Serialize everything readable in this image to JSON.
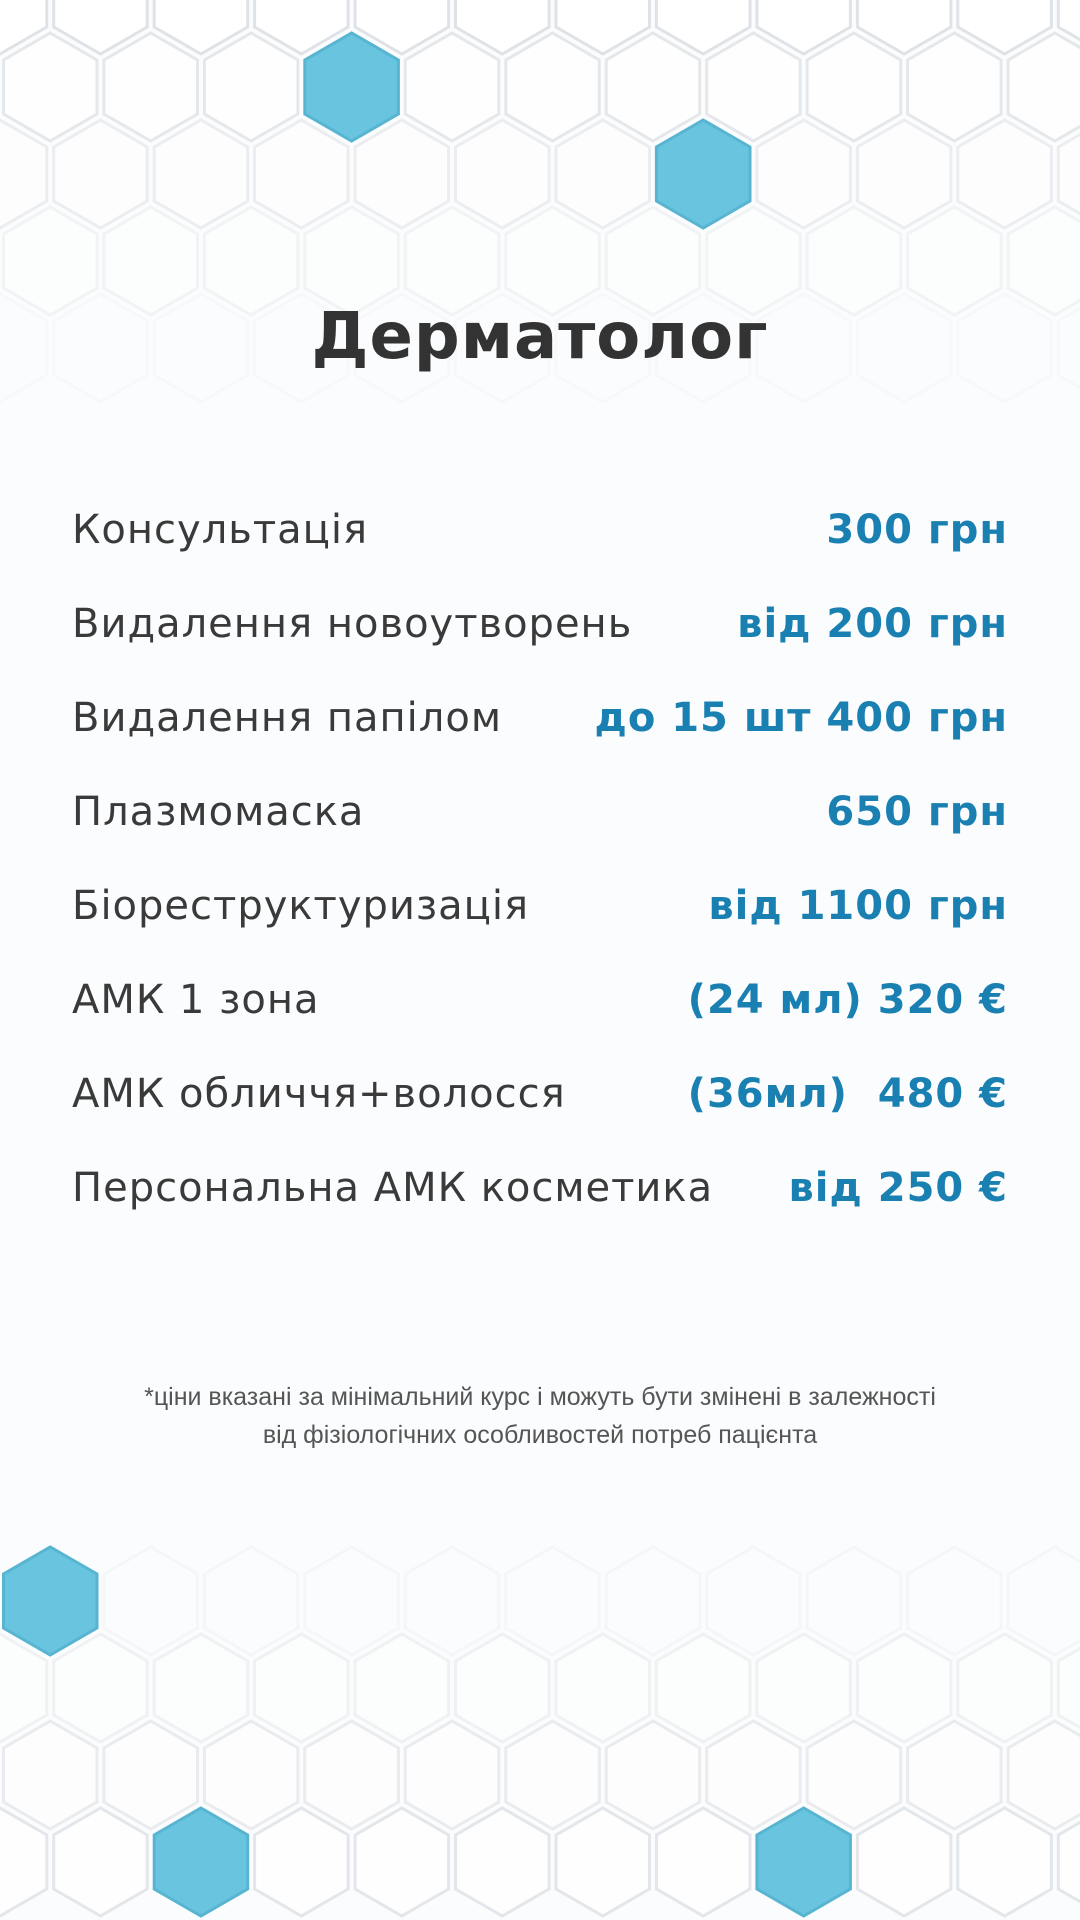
{
  "title": "Дерматолог",
  "accent_color": "#1a80b2",
  "services": [
    {
      "name": "Консультація",
      "price": "300 грн"
    },
    {
      "name": "Видалення новоутворень",
      "price": "від 200 грн"
    },
    {
      "name": "Видалення папілом",
      "price": "до 15 шт 400 грн"
    },
    {
      "name": "Плазмомаска",
      "price": "650 грн"
    },
    {
      "name": "Біореструктуризація",
      "price": "від 1100 грн"
    },
    {
      "name": "АМК 1 зона",
      "price": "(24 мл) 320 €"
    },
    {
      "name": "АМК обличчя+волосся",
      "price": "(36мл)  480 €"
    },
    {
      "name": "Персональна АМК косметика",
      "price": "від 250 €"
    }
  ],
  "note_line1": "*ціни вказані за мінімальний курс і можуть бути змінені в залежності",
  "note_line2": "від фізіологічних особливостей потреб пацієнта"
}
